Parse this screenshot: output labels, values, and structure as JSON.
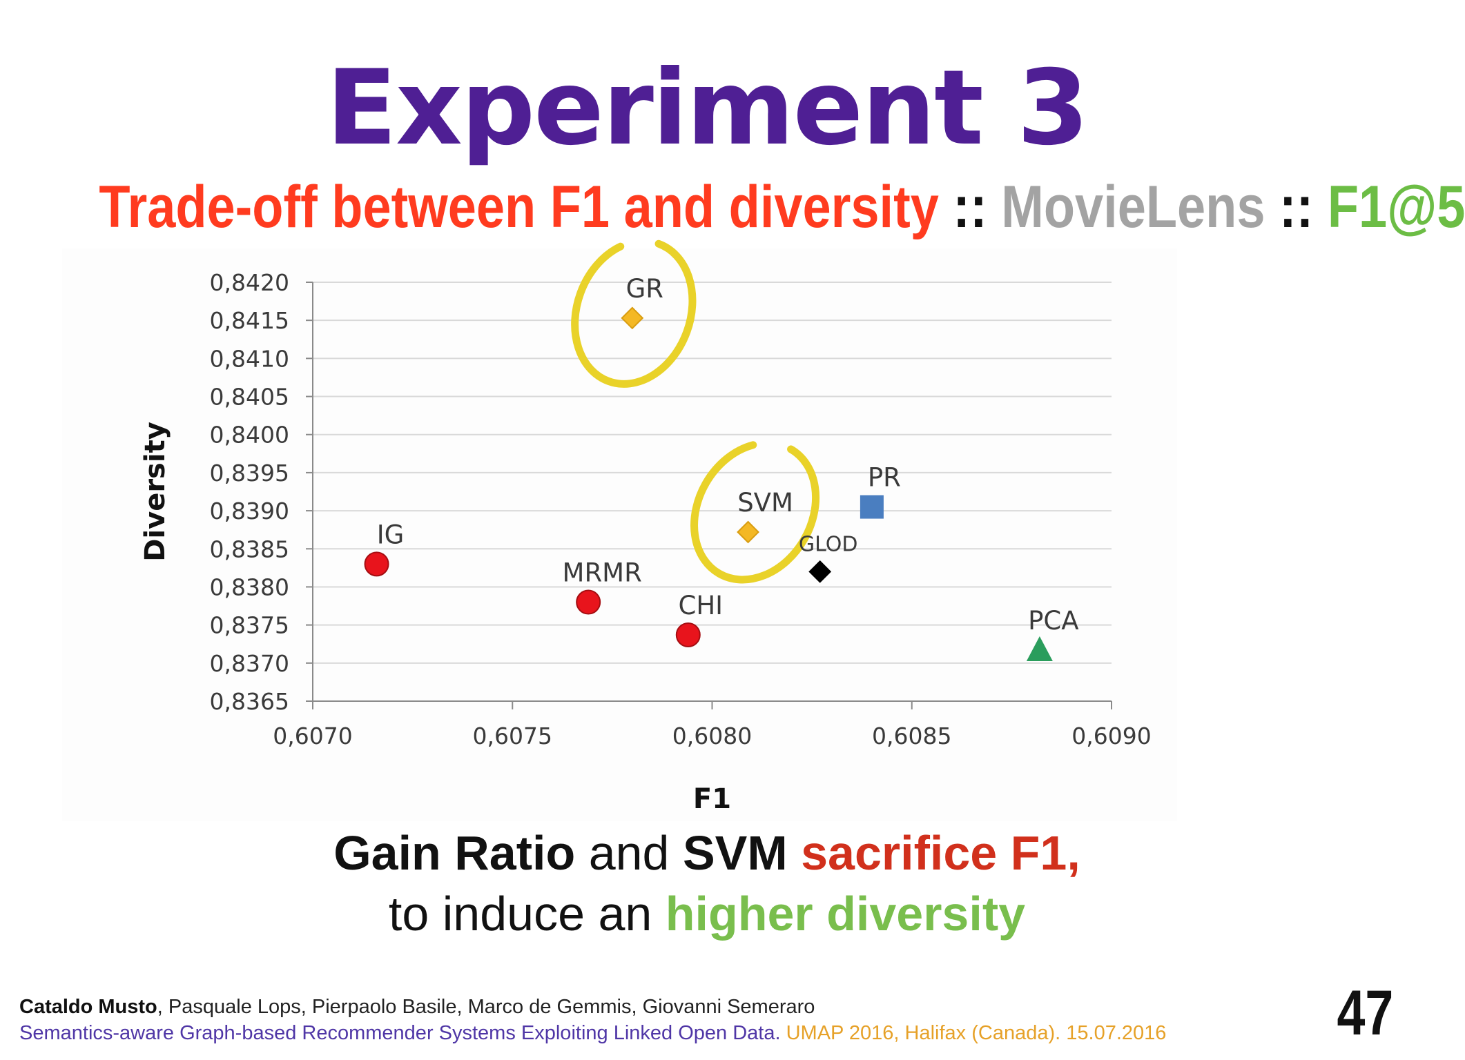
{
  "title": "Experiment 3",
  "subtitle": {
    "part1": "Trade-off between F1 and diversity",
    "sep1": " :: ",
    "part2": "MovieLens",
    "sep2": " :: ",
    "part3": "F1@5"
  },
  "caption": {
    "line1_bold1": "Gain Ratio",
    "line1_plain": " and ",
    "line1_bold2": "SVM",
    "line1_red": " sacrifice F1,",
    "line2_plain": "to induce an ",
    "line2_green": "higher diversity"
  },
  "footer": {
    "author_main": "Cataldo Musto",
    "authors_rest": ", Pasquale Lops, Pierpaolo Basile, Marco de Gemmis, Giovanni Semeraro",
    "paper": "Semantics-aware Graph-based Recommender Systems Exploiting Linked Open Data.",
    "venue": " UMAP 2016, Halifax (Canada). 15.07.2016"
  },
  "page_number": "47",
  "colors": {
    "title": "#4f1f94",
    "red_point": "#e8141c",
    "yellow_point": "#f4b824",
    "blue_point": "#4a7ec0",
    "black_point": "#000000",
    "green_point": "#2a9d5c",
    "highlight_ring": "#e9d229"
  },
  "chart_data": {
    "type": "scatter",
    "xlabel": "F1",
    "ylabel": "Diversity",
    "xlim": [
      0.607,
      0.609
    ],
    "ylim": [
      0.8365,
      0.842
    ],
    "x_ticks": [
      "0,6070",
      "0,6075",
      "0,6080",
      "0,6085",
      "0,6090"
    ],
    "x_tick_values": [
      0.607,
      0.6075,
      0.608,
      0.6085,
      0.609
    ],
    "y_ticks": [
      "0,8420",
      "0,8415",
      "0,8410",
      "0,8405",
      "0,8400",
      "0,8395",
      "0,8390",
      "0,8385",
      "0,8380",
      "0,8375",
      "0,8370",
      "0,8365"
    ],
    "y_tick_values": [
      0.842,
      0.8415,
      0.841,
      0.8405,
      0.84,
      0.8395,
      0.839,
      0.8385,
      0.838,
      0.8375,
      0.837,
      0.8365
    ],
    "grid": "horizontal",
    "points": [
      {
        "label": "IG",
        "x": 0.60716,
        "y": 0.8383,
        "marker": "circle",
        "color": "#e8141c",
        "label_pos": "above"
      },
      {
        "label": "MRMR",
        "x": 0.60769,
        "y": 0.8378,
        "marker": "circle",
        "color": "#e8141c",
        "label_pos": "above"
      },
      {
        "label": "CHI",
        "x": 0.60794,
        "y": 0.83737,
        "marker": "circle",
        "color": "#e8141c",
        "label_pos": "above"
      },
      {
        "label": "GR",
        "x": 0.6078,
        "y": 0.84153,
        "marker": "diamond",
        "color": "#f4b824",
        "label_pos": "above",
        "highlight": true
      },
      {
        "label": "SVM",
        "x": 0.60809,
        "y": 0.83872,
        "marker": "diamond",
        "color": "#f4b824",
        "label_pos": "above",
        "highlight": true
      },
      {
        "label": "GLOD",
        "x": 0.60827,
        "y": 0.8382,
        "marker": "diamond",
        "color": "#000000",
        "label_pos": "above"
      },
      {
        "label": "PR",
        "x": 0.6084,
        "y": 0.83905,
        "marker": "square",
        "color": "#4a7ec0",
        "label_pos": "above"
      },
      {
        "label": "PCA",
        "x": 0.60882,
        "y": 0.83717,
        "marker": "triangle",
        "color": "#2a9d5c",
        "label_pos": "above"
      }
    ]
  }
}
